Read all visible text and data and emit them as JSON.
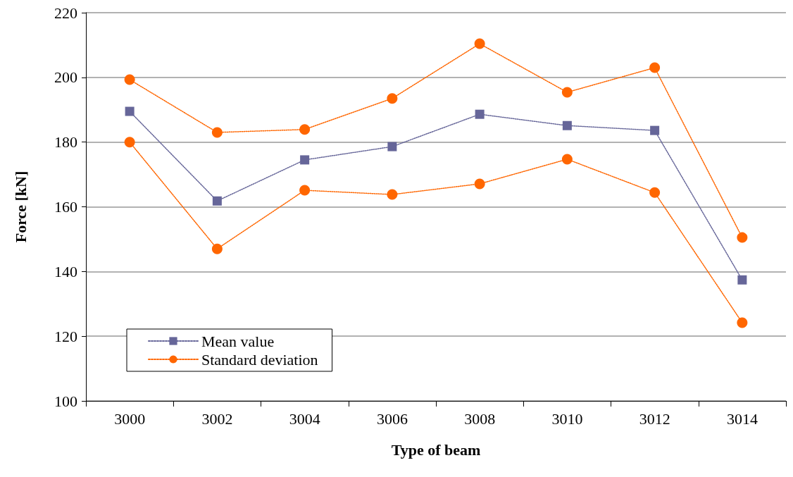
{
  "chart_data": {
    "type": "line",
    "xlabel": "Type of beam",
    "ylabel": "Force [kN]",
    "categories": [
      "3000",
      "3002",
      "3004",
      "3006",
      "3008",
      "3010",
      "3012",
      "3014"
    ],
    "series": [
      {
        "name": "Mean value",
        "color": "#666699",
        "marker": "square",
        "values": [
          189.5,
          161.8,
          174.5,
          178.6,
          188.6,
          185.1,
          183.6,
          137.4
        ]
      },
      {
        "name": "Standard deviation",
        "color": "#ff6600",
        "marker": "circle",
        "values": [
          199.3,
          183.0,
          183.9,
          193.5,
          210.4,
          195.4,
          203.0,
          150.5
        ]
      },
      {
        "color": "#ff6600",
        "marker": "circle",
        "values": [
          180.0,
          147.0,
          165.1,
          163.8,
          167.1,
          174.7,
          164.4,
          124.2
        ]
      }
    ],
    "ylim": [
      100,
      220
    ],
    "yticks": [
      100,
      120,
      140,
      160,
      180,
      200,
      220
    ],
    "grid": "y",
    "legend": "bottom left",
    "line_style": "dotted"
  }
}
